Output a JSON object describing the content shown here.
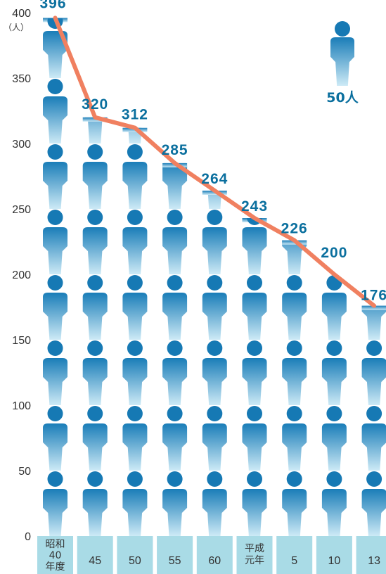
{
  "chart_data": {
    "type": "bar",
    "ylabel": "（人）",
    "ylim": [
      0,
      400
    ],
    "yticks": [
      "0",
      "50",
      "100",
      "150",
      "200",
      "250",
      "300",
      "350",
      "400"
    ],
    "categories": [
      [
        "昭和",
        "40",
        "年度"
      ],
      [
        "45"
      ],
      [
        "50"
      ],
      [
        "55"
      ],
      [
        "60"
      ],
      [
        "平成",
        "元年"
      ],
      [
        "5"
      ],
      [
        "10"
      ],
      [
        "13"
      ]
    ],
    "values": [
      396,
      320,
      312,
      285,
      264,
      243,
      226,
      200,
      176
    ],
    "line_overlay": true,
    "legend": {
      "label": "50人"
    },
    "colors": {
      "figure_top": "#1a7db8",
      "figure_bottom": "#cdeaf6",
      "head": "#1679b4",
      "line": "#f08060",
      "category_box": "#a9dbe6",
      "label": "#0a6f9e"
    }
  }
}
